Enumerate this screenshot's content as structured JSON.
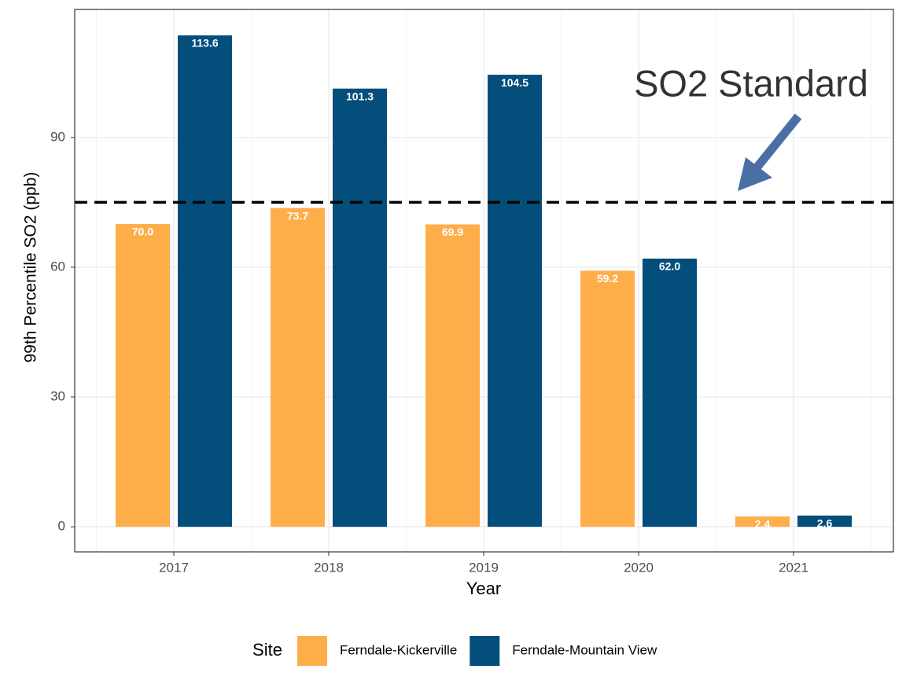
{
  "chart_data": {
    "type": "bar",
    "categories": [
      "2017",
      "2018",
      "2019",
      "2020",
      "2021"
    ],
    "series": [
      {
        "name": "Ferndale-Kickerville",
        "color": "#fdae4b",
        "values": [
          70.0,
          73.7,
          69.9,
          59.2,
          2.4
        ],
        "value_labels": [
          "70.0",
          "73.7",
          "69.9",
          "59.2",
          "2.4"
        ]
      },
      {
        "name": "Ferndale-Mountain View",
        "color": "#034e7b",
        "values": [
          113.6,
          101.3,
          104.5,
          62.0,
          2.6
        ],
        "value_labels": [
          "113.6",
          "101.3",
          "104.5",
          "62.0",
          "2.6"
        ]
      }
    ],
    "ylim": [
      -5.8,
      119.6
    ],
    "yticks": [
      0,
      30,
      60,
      90
    ],
    "grid": true,
    "xlabel": "Year",
    "ylabel": "99th Percentile SO2 (ppb)",
    "legend_title": "Site",
    "legend_position": "bottom",
    "reference_line": 75,
    "annotation": "SO2 Standard"
  }
}
